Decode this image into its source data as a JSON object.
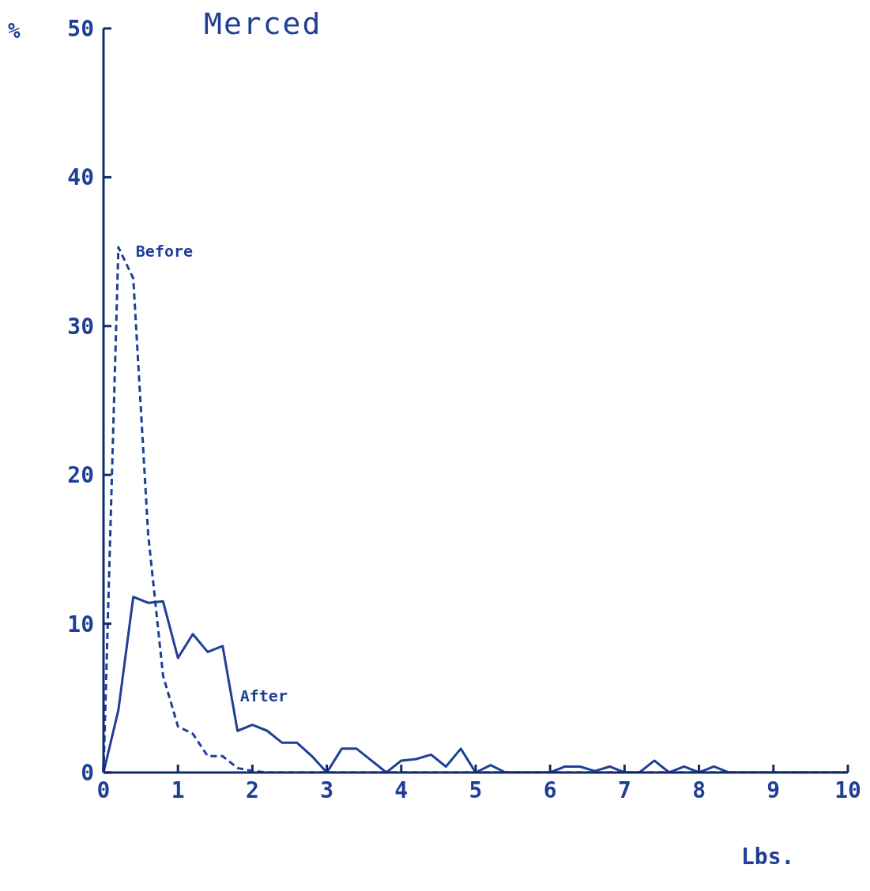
{
  "chart_data": {
    "type": "line",
    "title": "Merced",
    "xlabel": "Lbs.",
    "ylabel": "%",
    "x": [
      0,
      0.2,
      0.4,
      0.6,
      0.8,
      1.0,
      1.2,
      1.4,
      1.6,
      1.8,
      2.0,
      2.2,
      2.4,
      2.6,
      2.8,
      3.0,
      3.2,
      3.4,
      3.6,
      3.8,
      4.0,
      4.2,
      4.4,
      4.6,
      4.8,
      5.0,
      5.2,
      5.4,
      5.6,
      5.8,
      6.0,
      6.2,
      6.4,
      6.6,
      6.8,
      7.0,
      7.2,
      7.4,
      7.6,
      7.8,
      8.0,
      8.2,
      8.4,
      8.6,
      8.8,
      9.0,
      9.2,
      9.4,
      9.6,
      9.8,
      10.0
    ],
    "series": [
      {
        "name": "Before",
        "color": "#1f3f97",
        "line_style": "dashed",
        "values": [
          0,
          35.3,
          33.2,
          16.0,
          6.5,
          3.1,
          2.6,
          1.1,
          1.1,
          0.3,
          0.1,
          0,
          0,
          0,
          0,
          0,
          0,
          0,
          0,
          0,
          0,
          0,
          0,
          0,
          0,
          0,
          0,
          0,
          0,
          0,
          0,
          0,
          0,
          0,
          0,
          0,
          0,
          0,
          0,
          0,
          0,
          0,
          0,
          0,
          0,
          0,
          0,
          0,
          0,
          0,
          0
        ]
      },
      {
        "name": "After",
        "color": "#1f3f97",
        "line_style": "solid",
        "values": [
          0,
          4.2,
          11.8,
          11.4,
          11.5,
          7.7,
          9.3,
          8.1,
          8.5,
          2.8,
          3.2,
          2.8,
          2.0,
          2.0,
          1.1,
          0,
          1.6,
          1.6,
          0.8,
          0,
          0.8,
          0.9,
          1.2,
          0.4,
          1.6,
          0,
          0.5,
          0,
          0,
          0,
          0,
          0.4,
          0.4,
          0.1,
          0.4,
          0,
          0,
          0.8,
          0,
          0.4,
          0,
          0.4,
          0,
          0,
          0,
          0,
          0,
          0,
          0,
          0,
          0
        ]
      }
    ],
    "xlim": [
      0,
      10
    ],
    "xticks": [
      0,
      1,
      2,
      3,
      4,
      5,
      6,
      7,
      8,
      9,
      10
    ],
    "ylim": [
      0,
      50
    ],
    "yticks": [
      0,
      10,
      20,
      30,
      40,
      50
    ],
    "grid": false,
    "legend": false,
    "marker": "none"
  }
}
